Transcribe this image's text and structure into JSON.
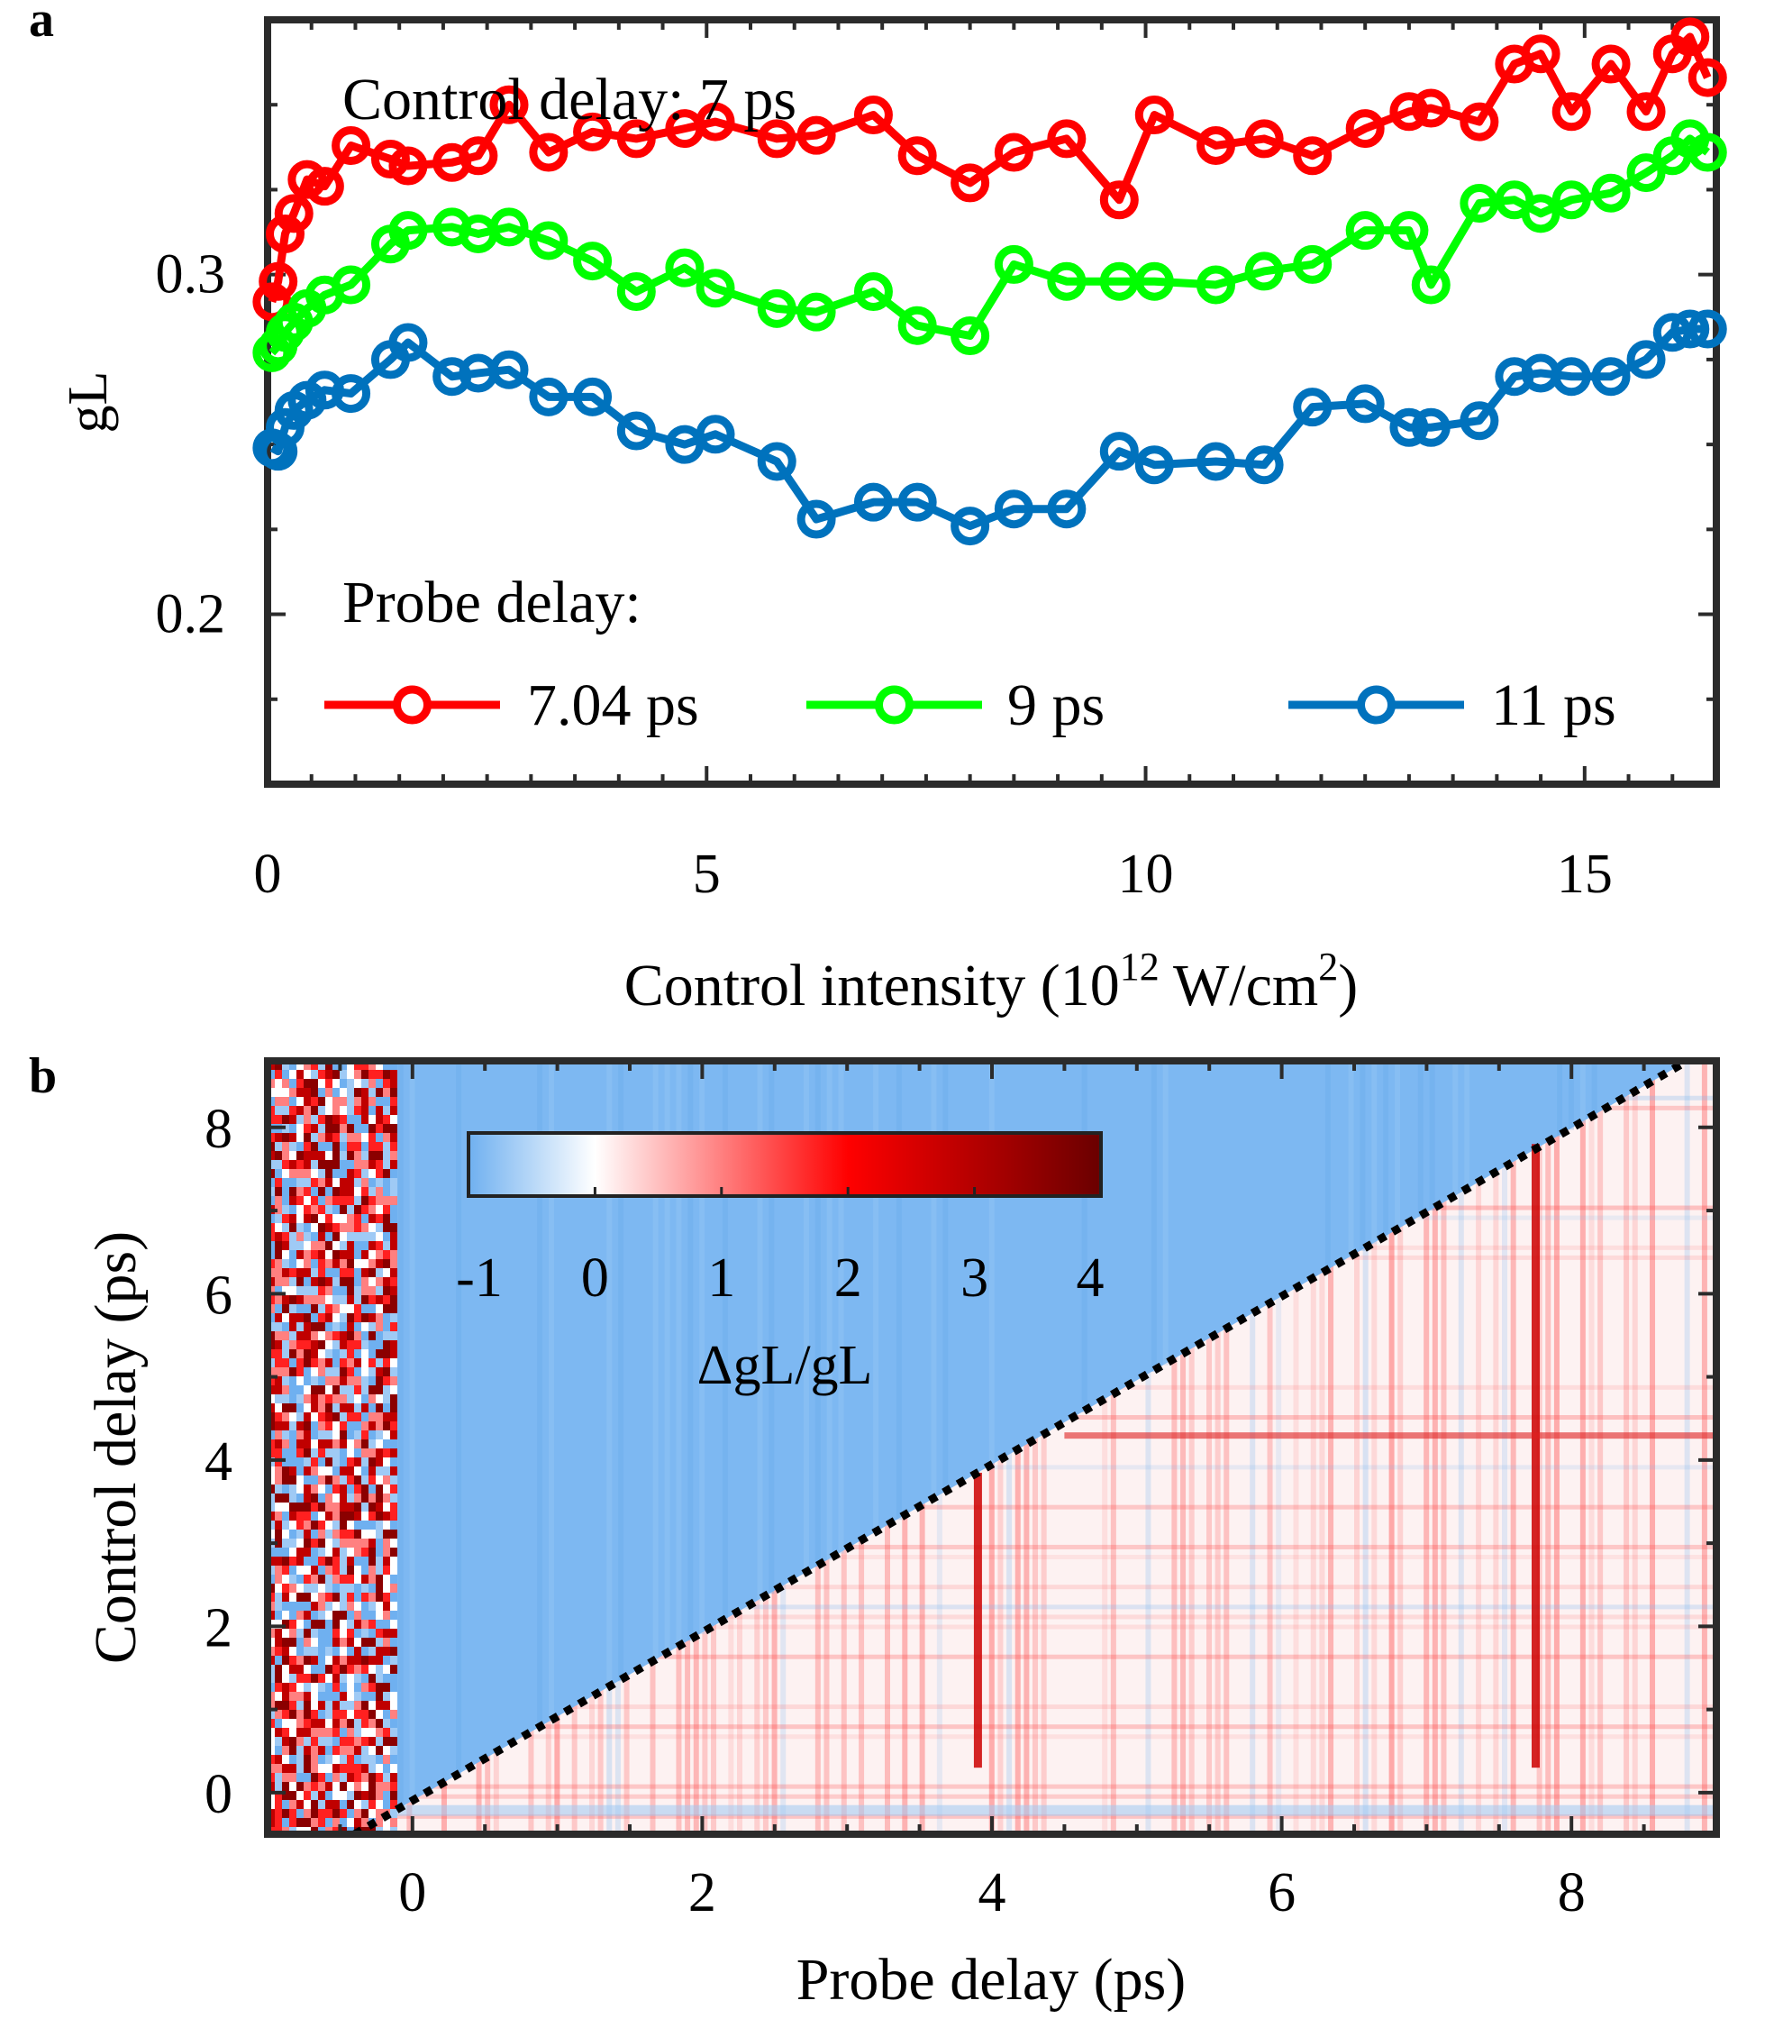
{
  "chart_data": [
    {
      "panel": "a",
      "type": "line",
      "annotation": "Control delay: 7 ps",
      "legend_title": "Probe delay:",
      "legend_position": "bottom",
      "xlabel": "Control intensity",
      "xlabel_unit": "(10",
      "xlabel_exp1": "12",
      "xlabel_unit2": " W/cm",
      "xlabel_exp2": "2",
      "xlabel_close": ")",
      "ylabel": "gL",
      "xlim": [
        0,
        16.5
      ],
      "ylim": [
        0.15,
        0.375
      ],
      "xticks": [
        0,
        5,
        10,
        15
      ],
      "xtick_labels": [
        "0",
        "5",
        "10",
        "15"
      ],
      "yticks": [
        0.2,
        0.3
      ],
      "ytick_labels": [
        "0.2",
        "0.3"
      ],
      "x": [
        0.05,
        0.12,
        0.2,
        0.3,
        0.45,
        0.65,
        0.95,
        1.4,
        1.6,
        2.1,
        2.4,
        2.75,
        3.2,
        3.7,
        4.2,
        4.75,
        5.1,
        5.8,
        6.25,
        6.9,
        7.4,
        8.0,
        8.5,
        9.1,
        9.7,
        10.1,
        10.8,
        11.35,
        11.9,
        12.5,
        13.0,
        13.25,
        13.8,
        14.2,
        14.5,
        14.85,
        15.3,
        15.7,
        16.0,
        16.2,
        16.4
      ],
      "series": [
        {
          "name": "7.04 ps",
          "color": "#ff0000",
          "values": [
            0.292,
            0.298,
            0.312,
            0.318,
            0.328,
            0.326,
            0.338,
            0.334,
            0.332,
            0.333,
            0.335,
            0.35,
            0.336,
            0.342,
            0.34,
            0.343,
            0.345,
            0.34,
            0.341,
            0.347,
            0.335,
            0.327,
            0.336,
            0.34,
            0.322,
            0.347,
            0.338,
            0.34,
            0.335,
            0.343,
            0.348,
            0.349,
            0.345,
            0.362,
            0.365,
            0.348,
            0.362,
            0.348,
            0.365,
            0.37,
            0.358
          ]
        },
        {
          "name": "9 ps",
          "color": "#00ff00",
          "values": [
            0.277,
            0.279,
            0.283,
            0.286,
            0.29,
            0.294,
            0.297,
            0.309,
            0.313,
            0.314,
            0.312,
            0.314,
            0.31,
            0.304,
            0.295,
            0.302,
            0.296,
            0.29,
            0.289,
            0.295,
            0.285,
            0.282,
            0.303,
            0.298,
            0.298,
            0.298,
            0.297,
            0.301,
            0.303,
            0.313,
            0.313,
            0.297,
            0.321,
            0.322,
            0.318,
            0.322,
            0.324,
            0.33,
            0.335,
            0.34,
            0.336
          ]
        },
        {
          "name": "11 ps",
          "color": "#0072bd",
          "values": [
            0.249,
            0.248,
            0.255,
            0.26,
            0.263,
            0.266,
            0.265,
            0.275,
            0.28,
            0.27,
            0.271,
            0.272,
            0.264,
            0.264,
            0.254,
            0.25,
            0.253,
            0.245,
            0.228,
            0.233,
            0.233,
            0.226,
            0.231,
            0.231,
            0.248,
            0.244,
            0.245,
            0.244,
            0.261,
            0.262,
            0.255,
            0.255,
            0.257,
            0.27,
            0.271,
            0.27,
            0.27,
            0.275,
            0.283,
            0.284,
            0.284
          ]
        }
      ]
    },
    {
      "panel": "b",
      "type": "heatmap",
      "xlabel": "Probe delay (ps)",
      "ylabel": "Control delay (ps)",
      "xlim": [
        -1,
        9
      ],
      "ylim": [
        -0.5,
        8.8
      ],
      "xticks": [
        0,
        2,
        4,
        6,
        8
      ],
      "xtick_labels": [
        "0",
        "2",
        "4",
        "6",
        "8"
      ],
      "yticks": [
        0,
        2,
        4,
        6,
        8
      ],
      "ytick_labels": [
        "0",
        "2",
        "4",
        "6",
        "8"
      ],
      "colorbar": {
        "label": "ΔgL/gL",
        "range": [
          -1,
          4
        ],
        "ticks": [
          -1,
          0,
          1,
          2,
          3,
          4
        ],
        "tick_labels": [
          "-1",
          "0",
          "1",
          "2",
          "3",
          "4"
        ],
        "colors": [
          "#6fb0f0",
          "#ffffff",
          "#ff0000",
          "#7a0000"
        ]
      },
      "regions": {
        "noise_band": {
          "x_range": [
            -1,
            -0.1
          ],
          "description_values": "mixed -1 to 4"
        },
        "upper_left_triangle_value": -0.6,
        "lower_right_triangle_value": 0.3,
        "diagonal": {
          "equation": "control_delay = probe_delay",
          "style": "dotted black"
        },
        "strong_vertical_lines_x": [
          3.9,
          7.75
        ],
        "strong_horizontal_line_y": 4.3
      }
    }
  ]
}
